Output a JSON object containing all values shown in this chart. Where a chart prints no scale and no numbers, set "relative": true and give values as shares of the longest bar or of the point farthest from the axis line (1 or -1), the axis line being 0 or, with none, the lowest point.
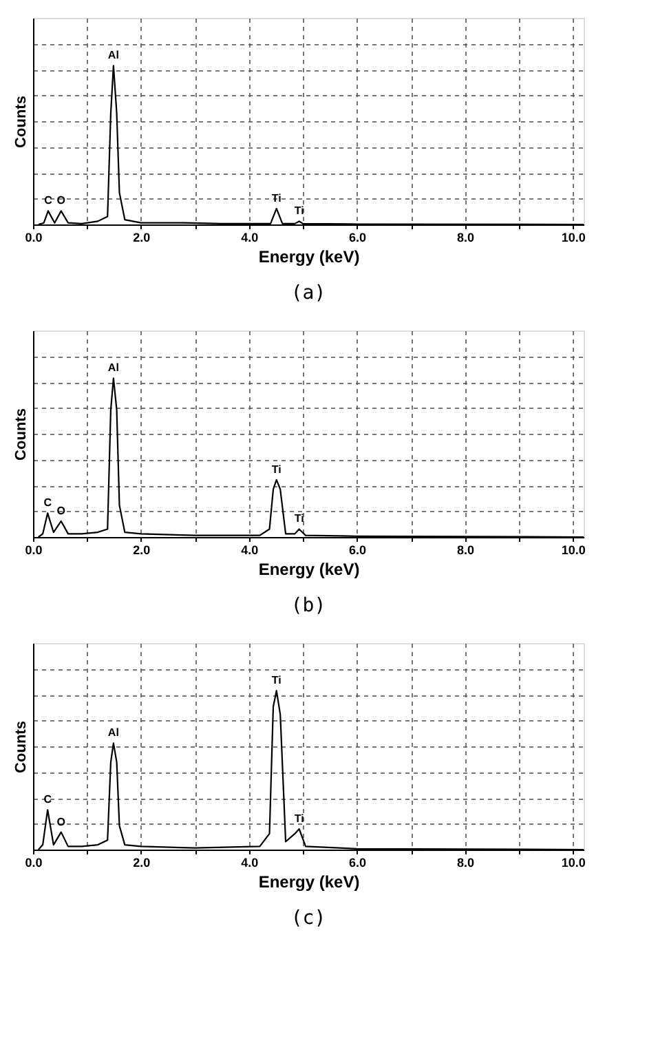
{
  "chart_data": [
    {
      "type": "line",
      "title": "(a)",
      "xlabel": "Energy (keV)",
      "ylabel": "Counts",
      "relative": true,
      "tick_labels": "x",
      "grid": true,
      "line_style": "solid",
      "marker": "none",
      "xlim": [
        0,
        10.2
      ],
      "xticks": [
        {
          "value": 0,
          "label": "0.0"
        },
        {
          "value": 1,
          "label": null
        },
        {
          "value": 2,
          "label": "2.0"
        },
        {
          "value": 3,
          "label": null
        },
        {
          "value": 4,
          "label": "4.0"
        },
        {
          "value": 5,
          "label": null
        },
        {
          "value": 6,
          "label": "6.0"
        },
        {
          "value": 7,
          "label": null
        },
        {
          "value": 8,
          "label": "8.0"
        },
        {
          "value": 9,
          "label": null
        },
        {
          "value": 10,
          "label": "10.0"
        }
      ],
      "series": [
        {
          "color": "#000000",
          "x": [
            0.1,
            0.2,
            0.28,
            0.4,
            0.52,
            0.65,
            0.9,
            1.2,
            1.38,
            1.44,
            1.49,
            1.55,
            1.6,
            1.7,
            2.0,
            2.8,
            3.5,
            4.4,
            4.51,
            4.62,
            4.85,
            4.93,
            5.0,
            6.0,
            10.2
          ],
          "values": [
            0,
            0.01,
            0.085,
            0.01,
            0.085,
            0.01,
            0.005,
            0.02,
            0.05,
            0.7,
            1,
            0.7,
            0.2,
            0.03,
            0.01,
            0.01,
            0.005,
            0.005,
            0.1,
            0.005,
            0.005,
            0.02,
            0.005,
            0.002,
            0
          ]
        }
      ],
      "annotations": [
        {
          "text": "C",
          "x": 0.28,
          "y": 0.085
        },
        {
          "text": "O",
          "x": 0.52,
          "y": 0.085
        },
        {
          "text": "Al",
          "x": 1.49,
          "y": 1
        },
        {
          "text": "Ti",
          "x": 4.51,
          "y": 0.1
        },
        {
          "text": "Ti",
          "x": 4.93,
          "y": 0.02
        }
      ]
    },
    {
      "type": "line",
      "title": "(b)",
      "xlabel": "Energy (keV)",
      "ylabel": "Counts",
      "relative": true,
      "tick_labels": "x",
      "grid": true,
      "line_style": "solid",
      "marker": "none",
      "xlim": [
        0,
        10.2
      ],
      "xticks": [
        {
          "value": 0,
          "label": "0.0"
        },
        {
          "value": 1,
          "label": null
        },
        {
          "value": 2,
          "label": "2.0"
        },
        {
          "value": 3,
          "label": null
        },
        {
          "value": 4,
          "label": "4.0"
        },
        {
          "value": 5,
          "label": null
        },
        {
          "value": 6,
          "label": "6.0"
        },
        {
          "value": 7,
          "label": null
        },
        {
          "value": 8,
          "label": "8.0"
        },
        {
          "value": 9,
          "label": null
        },
        {
          "value": 10,
          "label": "10.0"
        }
      ],
      "series": [
        {
          "color": "#000000",
          "x": [
            0.1,
            0.18,
            0.27,
            0.38,
            0.52,
            0.65,
            0.9,
            1.2,
            1.38,
            1.44,
            1.49,
            1.55,
            1.6,
            1.7,
            2.0,
            3.0,
            4.2,
            4.38,
            4.45,
            4.51,
            4.58,
            4.68,
            4.85,
            4.93,
            5.05,
            6.0,
            10.2
          ],
          "values": [
            0,
            0.02,
            0.15,
            0.03,
            0.1,
            0.02,
            0.02,
            0.03,
            0.05,
            0.8,
            1,
            0.8,
            0.2,
            0.03,
            0.02,
            0.01,
            0.01,
            0.05,
            0.3,
            0.36,
            0.3,
            0.02,
            0.02,
            0.05,
            0.01,
            0.005,
            0
          ]
        }
      ],
      "annotations": [
        {
          "text": "C",
          "x": 0.27,
          "y": 0.15
        },
        {
          "text": "O",
          "x": 0.52,
          "y": 0.1
        },
        {
          "text": "Al",
          "x": 1.49,
          "y": 1
        },
        {
          "text": "Ti",
          "x": 4.51,
          "y": 0.36
        },
        {
          "text": "Ti",
          "x": 4.93,
          "y": 0.05
        }
      ]
    },
    {
      "type": "line",
      "title": "(c)",
      "xlabel": "Energy (keV)",
      "ylabel": "Counts",
      "relative": true,
      "tick_labels": "x",
      "grid": true,
      "line_style": "solid",
      "marker": "none",
      "xlim": [
        0,
        10.2
      ],
      "xticks": [
        {
          "value": 0,
          "label": "0.0"
        },
        {
          "value": 1,
          "label": null
        },
        {
          "value": 2,
          "label": "2.0"
        },
        {
          "value": 3,
          "label": null
        },
        {
          "value": 4,
          "label": "4.0"
        },
        {
          "value": 5,
          "label": null
        },
        {
          "value": 6,
          "label": "6.0"
        },
        {
          "value": 7,
          "label": null
        },
        {
          "value": 8,
          "label": "8.0"
        },
        {
          "value": 9,
          "label": null
        },
        {
          "value": 10,
          "label": "10.0"
        }
      ],
      "series": [
        {
          "color": "#000000",
          "x": [
            0.1,
            0.18,
            0.27,
            0.38,
            0.52,
            0.65,
            0.9,
            1.2,
            1.38,
            1.44,
            1.49,
            1.55,
            1.6,
            1.7,
            2.0,
            3.0,
            4.2,
            4.38,
            4.45,
            4.51,
            4.58,
            4.68,
            4.85,
            4.93,
            5.05,
            6.0,
            10.2
          ],
          "values": [
            0,
            0.03,
            0.25,
            0.03,
            0.11,
            0.02,
            0.02,
            0.03,
            0.06,
            0.55,
            0.67,
            0.55,
            0.15,
            0.03,
            0.02,
            0.01,
            0.02,
            0.1,
            0.9,
            1,
            0.85,
            0.05,
            0.1,
            0.13,
            0.02,
            0.005,
            0
          ]
        }
      ],
      "annotations": [
        {
          "text": "C",
          "x": 0.27,
          "y": 0.25
        },
        {
          "text": "O",
          "x": 0.52,
          "y": 0.11
        },
        {
          "text": "Al",
          "x": 1.49,
          "y": 0.67
        },
        {
          "text": "Ti",
          "x": 4.51,
          "y": 1
        },
        {
          "text": "Ti",
          "x": 4.93,
          "y": 0.13
        }
      ]
    }
  ]
}
